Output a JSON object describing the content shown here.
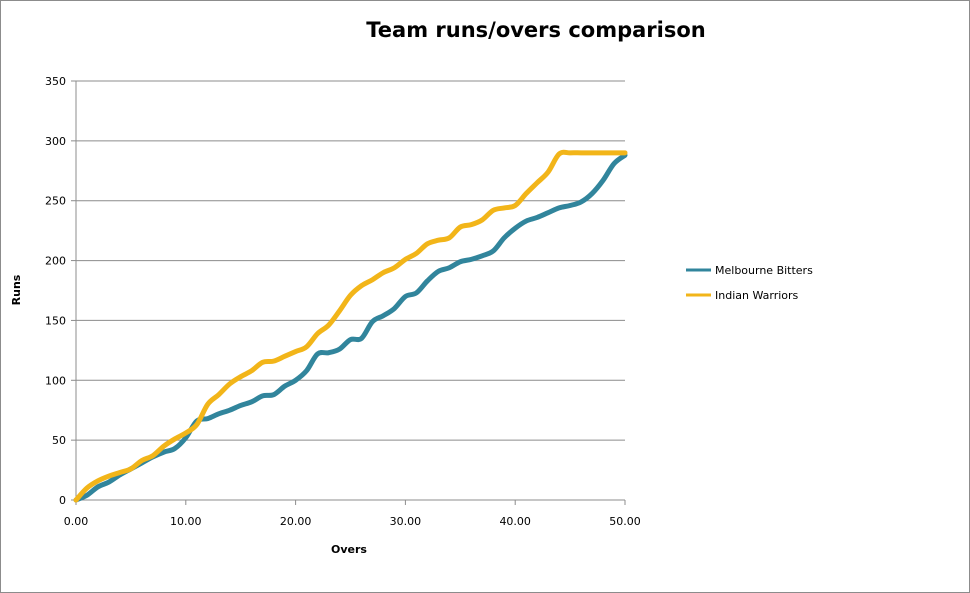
{
  "chart_data": {
    "type": "line",
    "title": "Team runs/overs comparison",
    "xlabel": "Overs",
    "ylabel": "Runs",
    "xlim": [
      0,
      50
    ],
    "ylim": [
      0,
      350
    ],
    "x_ticks": [
      "0.00",
      "10.00",
      "20.00",
      "30.00",
      "40.00",
      "50.00"
    ],
    "y_ticks": [
      "0",
      "50",
      "100",
      "150",
      "200",
      "250",
      "300",
      "350"
    ],
    "grid": "horizontal",
    "legend_position": "right",
    "series": [
      {
        "name": "Melbourne Bitters",
        "color": "#31859c",
        "x": [
          0,
          1,
          2,
          3,
          4,
          5,
          6,
          7,
          8,
          9,
          10,
          11,
          12,
          13,
          14,
          15,
          16,
          17,
          18,
          19,
          20,
          21,
          22,
          23,
          24,
          25,
          26,
          27,
          28,
          29,
          30,
          31,
          32,
          33,
          34,
          35,
          36,
          37,
          38,
          39,
          40,
          41,
          42,
          43,
          44,
          45,
          46,
          47,
          48,
          49,
          50
        ],
        "y": [
          0,
          4,
          11,
          15,
          21,
          26,
          31,
          36,
          40,
          43,
          52,
          66,
          68,
          72,
          75,
          79,
          82,
          87,
          88,
          95,
          100,
          108,
          122,
          123,
          126,
          134,
          135,
          149,
          154,
          160,
          170,
          173,
          183,
          191,
          194,
          199,
          201,
          204,
          208,
          219,
          227,
          233,
          236,
          240,
          244,
          246,
          249,
          256,
          267,
          281,
          288
        ]
      },
      {
        "name": "Indian Warriors",
        "color": "#f2b519",
        "x": [
          0,
          1,
          2,
          3,
          4,
          5,
          6,
          7,
          8,
          9,
          10,
          11,
          12,
          13,
          14,
          15,
          16,
          17,
          18,
          19,
          20,
          21,
          22,
          23,
          24,
          25,
          26,
          27,
          28,
          29,
          30,
          31,
          32,
          33,
          34,
          35,
          36,
          37,
          38,
          39,
          40,
          41,
          42,
          43,
          44,
          45,
          46,
          47,
          48,
          49,
          50
        ],
        "y": [
          0,
          10,
          16,
          20,
          23,
          26,
          33,
          37,
          45,
          51,
          56,
          63,
          80,
          88,
          97,
          103,
          108,
          115,
          116,
          120,
          124,
          128,
          139,
          146,
          158,
          171,
          179,
          184,
          190,
          194,
          201,
          206,
          214,
          217,
          219,
          228,
          230,
          234,
          242,
          244,
          246,
          256,
          265,
          274,
          289,
          290,
          290,
          290,
          290,
          290,
          290
        ]
      }
    ]
  }
}
